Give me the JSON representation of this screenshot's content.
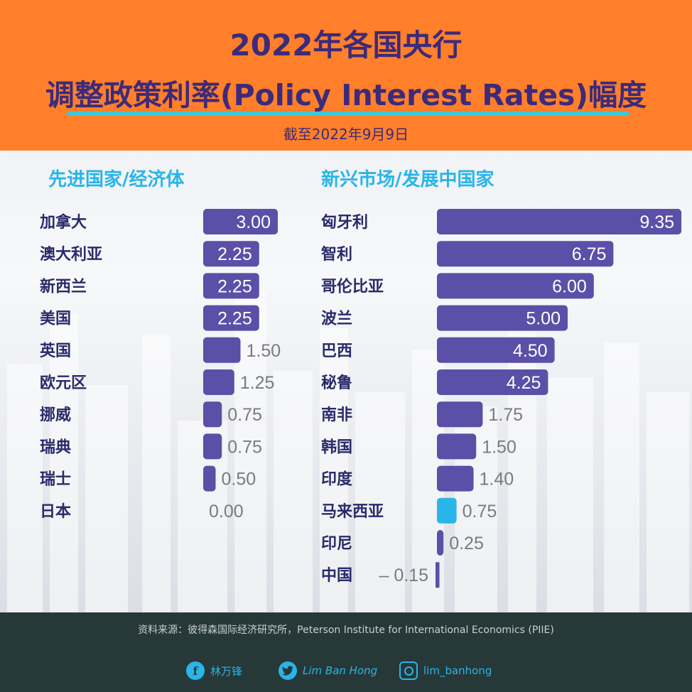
{
  "header": {
    "title_line1": "2022年各国央行",
    "title_line2": "调整政策利率(Policy Interest Rates)幅度",
    "subtitle": "截至2022年9月9日"
  },
  "chart_data": [
    {
      "type": "bar",
      "orientation": "horizontal",
      "title": "先进国家/经济体",
      "categories": [
        "加拿大",
        "澳大利亚",
        "新西兰",
        "美国",
        "英国",
        "欧元区",
        "挪威",
        "瑞典",
        "瑞士",
        "日本"
      ],
      "values": [
        3.0,
        2.25,
        2.25,
        2.25,
        1.5,
        1.25,
        0.75,
        0.75,
        0.5,
        0.0
      ],
      "labels": [
        "3.00",
        "2.25",
        "2.25",
        "2.25",
        "1.50",
        "1.25",
        "0.75",
        "0.75",
        "0.50",
        "0.00"
      ],
      "bar_color": "#5b4fa8"
    },
    {
      "type": "bar",
      "orientation": "horizontal",
      "title": "新兴市场/发展中国家",
      "categories": [
        "匈牙利",
        "智利",
        "哥伦比亚",
        "波兰",
        "巴西",
        "秘鲁",
        "南非",
        "韩国",
        "印度",
        "马来西亚",
        "印尼",
        "中国"
      ],
      "values": [
        9.35,
        6.75,
        6.0,
        5.0,
        4.5,
        4.25,
        1.75,
        1.5,
        1.4,
        0.75,
        0.25,
        -0.15
      ],
      "labels": [
        "9.35",
        "6.75",
        "6.00",
        "5.00",
        "4.50",
        "4.25",
        "1.75",
        "1.50",
        "1.40",
        "0.75",
        "0.25",
        "– 0.15"
      ],
      "bar_color": "#5b4fa8",
      "highlight": {
        "category": "马来西亚",
        "color": "#29b5e8"
      }
    }
  ],
  "footer": {
    "source": "资料来源：彼得森国际经济研究所，Peterson Institute for International Economics (PIIE)",
    "facebook_icon": "facebook-icon",
    "facebook_label": "林万锋",
    "twitter_icon": "twitter-icon",
    "twitter_label": "Lim Ban Hong",
    "instagram_icon": "instagram-icon",
    "instagram_label": "lim_banhong"
  }
}
